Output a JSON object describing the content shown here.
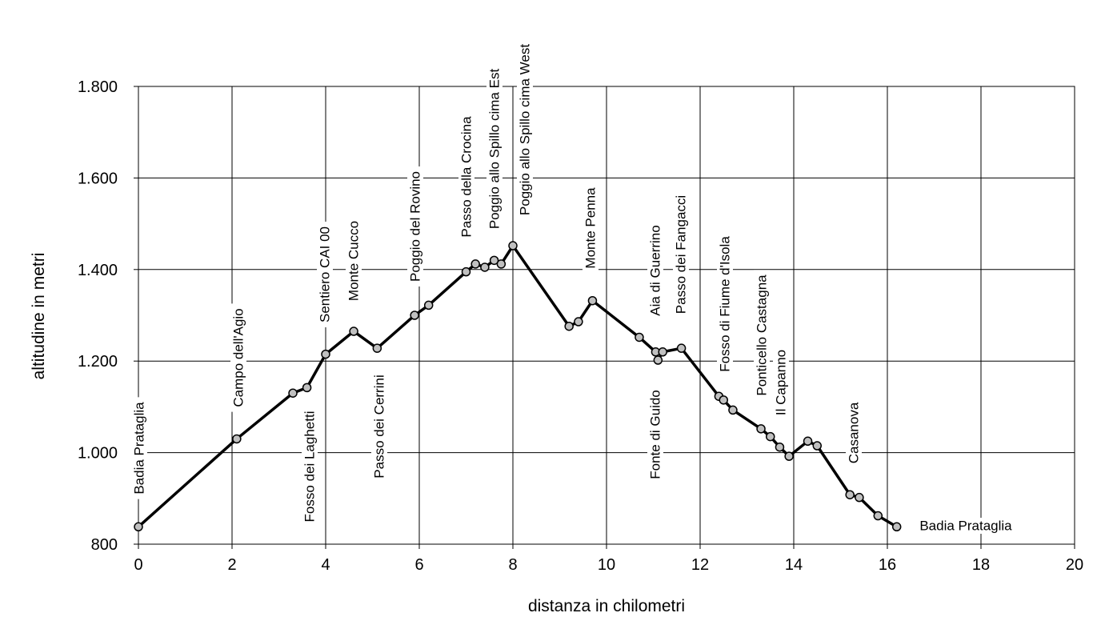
{
  "chart_data": {
    "type": "line",
    "title": "",
    "xlabel": "distanza in chilometri",
    "ylabel": "altitudine  in metri",
    "xlim": [
      0,
      20
    ],
    "ylim": [
      800,
      1800
    ],
    "xticks": [
      0,
      2,
      4,
      6,
      8,
      10,
      12,
      14,
      16,
      18,
      20
    ],
    "xtick_labels": [
      "0",
      "2",
      "4",
      "6",
      "8",
      "10",
      "12",
      "14",
      "16",
      "18",
      "20"
    ],
    "yticks": [
      800,
      1000,
      1200,
      1400,
      1600,
      1800
    ],
    "ytick_labels": [
      "800",
      "1.000",
      "1.200",
      "1.400",
      "1.600",
      "1.800"
    ],
    "grid": true,
    "legend": "none",
    "colors": {
      "line": "#000000",
      "marker_fill": "#c0c0c0",
      "marker_stroke": "#000000",
      "grid": "#000000"
    },
    "series": [
      {
        "x": [
          0,
          2.1,
          3.3,
          3.6,
          4.0,
          4.6,
          5.1,
          5.9,
          6.2,
          7.0,
          7.2,
          7.4,
          7.6,
          7.75,
          8.0,
          9.2,
          9.4,
          9.7,
          10.7,
          11.05,
          11.1,
          11.2,
          11.6,
          12.4,
          12.5,
          12.7,
          13.3,
          13.5,
          13.7,
          13.9,
          14.3,
          14.5,
          15.2,
          15.4,
          15.8,
          16.2
        ],
        "y": [
          838,
          1030,
          1130,
          1142,
          1215,
          1265,
          1228,
          1300,
          1322,
          1395,
          1412,
          1405,
          1420,
          1412,
          1452,
          1276,
          1286,
          1332,
          1252,
          1220,
          1202,
          1220,
          1228,
          1123,
          1115,
          1093,
          1052,
          1035,
          1012,
          992,
          1025,
          1015,
          908,
          902,
          862,
          838
        ]
      }
    ],
    "annotations": [
      {
        "text": "Badia  Prataglia",
        "x": 0,
        "y": 838,
        "orientation": "vertical"
      },
      {
        "text": "Campo dell'Agio",
        "x": 2.1,
        "y": 1030,
        "orientation": "vertical"
      },
      {
        "text": "Fosso dei Laghetti",
        "x": 3.6,
        "y": 1142,
        "orientation": "vertical"
      },
      {
        "text": "Sentiero CAI 00",
        "x": 4.0,
        "y": 1215,
        "orientation": "vertical"
      },
      {
        "text": "Monte Cucco",
        "x": 4.6,
        "y": 1265,
        "orientation": "vertical"
      },
      {
        "text": "Passo dei Cerrini",
        "x": 5.1,
        "y": 1228,
        "orientation": "vertical"
      },
      {
        "text": "Poggio del Rovino",
        "x": 5.9,
        "y": 1300,
        "orientation": "vertical"
      },
      {
        "text": "Passo della Crocina",
        "x": 7.0,
        "y": 1395,
        "orientation": "vertical"
      },
      {
        "text": "Poggio allo Spillo cima Est",
        "x": 7.6,
        "y": 1420,
        "orientation": "vertical"
      },
      {
        "text": "Poggio allo Spillo cima West",
        "x": 8.0,
        "y": 1452,
        "orientation": "vertical"
      },
      {
        "text": "Monte Penna",
        "x": 9.7,
        "y": 1332,
        "orientation": "vertical"
      },
      {
        "text": "Aia di Guerrino",
        "x": 11.05,
        "y": 1220,
        "orientation": "vertical"
      },
      {
        "text": "Fonte di Guido",
        "x": 11.1,
        "y": 1202,
        "orientation": "vertical"
      },
      {
        "text": "Passo dei Fangacci",
        "x": 11.6,
        "y": 1228,
        "orientation": "vertical"
      },
      {
        "text": "Fosso di Fiume d'Isola",
        "x": 12.5,
        "y": 1115,
        "orientation": "vertical"
      },
      {
        "text": "Ponticello Castagna",
        "x": 13.3,
        "y": 1052,
        "orientation": "vertical"
      },
      {
        "text": "Il Capanno",
        "x": 13.7,
        "y": 1012,
        "orientation": "vertical"
      },
      {
        "text": "Casanova",
        "x": 15.2,
        "y": 908,
        "orientation": "vertical"
      },
      {
        "text": "Badia Prataglia",
        "x": 16.2,
        "y": 838,
        "orientation": "horizontal"
      }
    ]
  }
}
